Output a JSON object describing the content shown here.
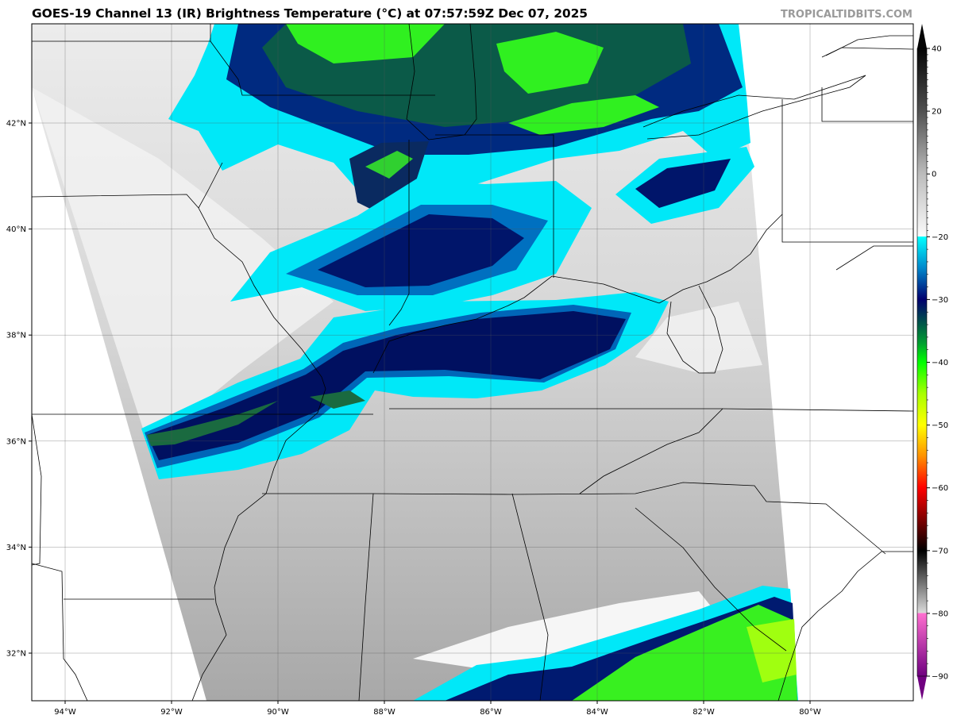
{
  "header": {
    "title": "GOES-19 Channel 13 (IR) Brightness Temperature (°C) at 07:57:59Z Dec 07, 2025",
    "branding": "TROPICALTIDBITS.COM"
  },
  "map": {
    "longitude_labels": [
      {
        "lon": -94,
        "label": "94°W"
      },
      {
        "lon": -92,
        "label": "92°W"
      },
      {
        "lon": -90,
        "label": "90°W"
      },
      {
        "lon": -88,
        "label": "88°W"
      },
      {
        "lon": -86,
        "label": "86°W"
      },
      {
        "lon": -84,
        "label": "84°W"
      },
      {
        "lon": -82,
        "label": "82°W"
      },
      {
        "lon": -80,
        "label": "80°W"
      }
    ],
    "latitude_labels": [
      {
        "lat": 42,
        "label": "42°N"
      },
      {
        "lat": 40,
        "label": "40°N"
      },
      {
        "lat": 38,
        "label": "38°N"
      },
      {
        "lat": 36,
        "label": "36°N"
      },
      {
        "lat": 34,
        "label": "34°N"
      },
      {
        "lat": 32,
        "label": "32°N"
      }
    ],
    "colors": {
      "cloud_cyan": "#00e8f8",
      "cloud_blue": "#0060b0",
      "cloud_navy": "#00105e",
      "cloud_darkgreen": "#0a5a48",
      "cloud_green": "#30f020",
      "clear_gray": "#c4c4c4"
    }
  },
  "colorbar": {
    "ticks": [
      "40",
      "20",
      "0",
      "−20",
      "−30",
      "−40",
      "−50",
      "−60",
      "−70",
      "−80",
      "−90"
    ],
    "tick_values": [
      40,
      20,
      0,
      -20,
      -30,
      -40,
      -50,
      -60,
      -70,
      -80,
      -90
    ],
    "stops": [
      {
        "value": 40,
        "color": "#050505"
      },
      {
        "value": 20,
        "color": "#505050"
      },
      {
        "value": 0,
        "color": "#bcbcbc"
      },
      {
        "value": -19.9,
        "color": "#fbfbfb"
      },
      {
        "value": -20,
        "color": "#00ffff"
      },
      {
        "value": -25,
        "color": "#0088cc"
      },
      {
        "value": -30,
        "color": "#00006e"
      },
      {
        "value": -34,
        "color": "#005a48"
      },
      {
        "value": -37,
        "color": "#00a030"
      },
      {
        "value": -40,
        "color": "#00ff00"
      },
      {
        "value": -45,
        "color": "#a8ff00"
      },
      {
        "value": -50,
        "color": "#ffff00"
      },
      {
        "value": -55,
        "color": "#ff9000"
      },
      {
        "value": -60,
        "color": "#ff0000"
      },
      {
        "value": -65,
        "color": "#800000"
      },
      {
        "value": -70,
        "color": "#000000"
      },
      {
        "value": -75,
        "color": "#707070"
      },
      {
        "value": -79.9,
        "color": "#dadada"
      },
      {
        "value": -80,
        "color": "#ff70d0"
      },
      {
        "value": -90,
        "color": "#700080"
      }
    ]
  }
}
